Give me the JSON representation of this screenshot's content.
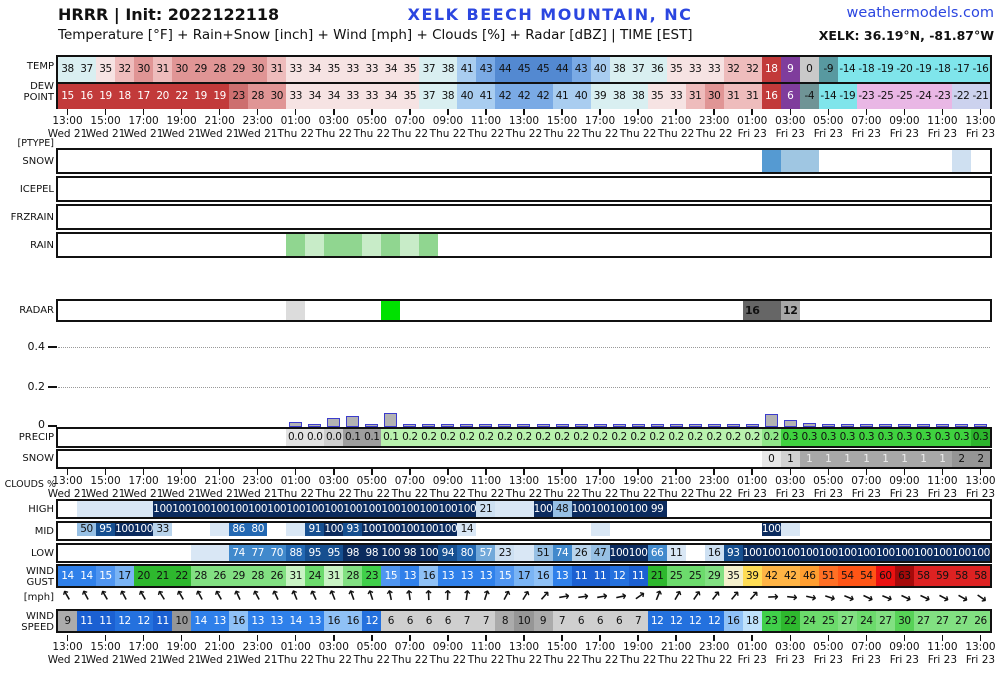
{
  "header": {
    "model_title": "HRRR | Init: 2022122118",
    "station_title": "XELK BEECH MOUNTAIN, NC",
    "site": "weathermodels.com",
    "subtitle": "Temperature [°F] + Rain+Snow [inch] + Wind [mph] + Clouds [%] + Radar [dBZ] | TIME [EST]",
    "coords": "XELK: 36.19°N, -81.87°W",
    "brand_blue": "#2b46e0"
  },
  "row_labels": {
    "temp": "TEMP",
    "dew": "DEW POINT",
    "ptype": "[PTYPE]",
    "ptype_snow": "SNOW",
    "ptype_icepel": "ICEPEL",
    "ptype_frzrain": "FRZRAIN",
    "ptype_rain": "RAIN",
    "radar": "RADAR",
    "precip": "PRECIP",
    "snow": "SNOW",
    "clouds": "CLOUDS %",
    "high": "HIGH",
    "mid": "MID",
    "low": "LOW",
    "gust": "WIND GUST",
    "mph": "[mph]",
    "speed": "WIND SPEED"
  },
  "chart_data": {
    "type": "meteogram",
    "time_axis": {
      "hours": [
        "13:00",
        "15:00",
        "17:00",
        "19:00",
        "21:00",
        "23:00",
        "01:00",
        "03:00",
        "05:00",
        "07:00",
        "09:00",
        "11:00",
        "13:00",
        "15:00",
        "17:00",
        "19:00",
        "21:00",
        "23:00",
        "01:00",
        "03:00",
        "05:00",
        "07:00",
        "09:00",
        "11:00",
        "13:00"
      ],
      "days": [
        "Wed 21",
        "Wed 21",
        "Wed 21",
        "Wed 21",
        "Wed 21",
        "Wed 21",
        "Thu 22",
        "Thu 22",
        "Thu 22",
        "Thu 22",
        "Thu 22",
        "Thu 22",
        "Thu 22",
        "Thu 22",
        "Thu 22",
        "Thu 22",
        "Thu 22",
        "Thu 22",
        "Fri 23",
        "Fri 23",
        "Fri 23",
        "Fri 23",
        "Fri 23",
        "Fri 23",
        "Fri 23"
      ]
    },
    "temp_f": [
      38,
      37,
      35,
      32,
      30,
      31,
      30,
      29,
      28,
      29,
      30,
      31,
      33,
      34,
      35,
      33,
      33,
      34,
      35,
      37,
      38,
      41,
      43,
      44,
      45,
      45,
      44,
      43,
      40,
      38,
      37,
      36,
      35,
      33,
      33,
      32,
      32,
      18,
      9,
      0,
      -9,
      -14,
      -18,
      -19,
      -20,
      -19,
      -18,
      -17,
      -16
    ],
    "dewpoint_f": [
      15,
      16,
      19,
      18,
      17,
      20,
      22,
      19,
      19,
      23,
      28,
      30,
      33,
      34,
      34,
      33,
      33,
      34,
      35,
      37,
      38,
      40,
      41,
      42,
      42,
      42,
      41,
      40,
      39,
      38,
      38,
      35,
      33,
      31,
      30,
      31,
      31,
      16,
      6,
      -4,
      -14,
      -19,
      -23,
      -25,
      -25,
      -24,
      -23,
      -22,
      -21
    ],
    "ptype_snow_cells": [
      {
        "col": 37,
        "bg": "#559ad2"
      },
      {
        "col": 38,
        "bg": "#9fc6e2"
      },
      {
        "col": 39,
        "bg": "#9fc6e2"
      },
      {
        "col": 47,
        "bg": "#cfe0f1"
      }
    ],
    "ptype_icepel_cells": [],
    "ptype_frzrain_cells": [],
    "ptype_rain_cells": [
      {
        "col": 12,
        "bg": "#90d690"
      },
      {
        "col": 13,
        "bg": "#c8ecc8"
      },
      {
        "col": 14,
        "bg": "#90d690"
      },
      {
        "col": 15,
        "bg": "#90d690"
      },
      {
        "col": 16,
        "bg": "#c8ecc8"
      },
      {
        "col": 17,
        "bg": "#90d690"
      },
      {
        "col": 18,
        "bg": "#c8ecc8"
      },
      {
        "col": 19,
        "bg": "#90d690"
      }
    ],
    "radar_cells": [
      {
        "col": 12,
        "bg": "#dcdcdc"
      },
      {
        "col": 17,
        "bg": "#00e100"
      },
      {
        "col": 36,
        "bg": "#666666",
        "label": "16"
      },
      {
        "col": 37,
        "bg": "#666666"
      },
      {
        "col": 38,
        "bg": "#a8a8a8",
        "label": "12"
      }
    ],
    "precip_axis": {
      "t04": "0.4",
      "t02": "0.2",
      "t0": "0",
      "unit": "inch"
    },
    "precip_bars_in": [
      0,
      0,
      0,
      0,
      0,
      0,
      0,
      0,
      0,
      0,
      0,
      0,
      0.025,
      0.008,
      0.045,
      0.055,
      0.008,
      0.07,
      0.008,
      0.015,
      0.006,
      0.006,
      0.006,
      0.006,
      0.006,
      0.006,
      0.006,
      0.006,
      0.006,
      0.006,
      0.006,
      0.006,
      0.006,
      0.006,
      0.006,
      0.006,
      0.006,
      0.068,
      0.034,
      0.02,
      0.01,
      0.01,
      0.01,
      0.01,
      0.01,
      0.01,
      0.01,
      0.01,
      0.01
    ],
    "precip_accum_in": [
      null,
      null,
      null,
      null,
      null,
      null,
      null,
      null,
      null,
      null,
      null,
      null,
      "0.0",
      "0.0",
      "0.0",
      "0.1",
      "0.1",
      "0.1",
      "0.2",
      "0.2",
      "0.2",
      "0.2",
      "0.2",
      "0.2",
      "0.2",
      "0.2",
      "0.2",
      "0.2",
      "0.2",
      "0.2",
      "0.2",
      "0.2",
      "0.2",
      "0.2",
      "0.2",
      "0.2",
      "0.2",
      "0.2",
      "0.3",
      "0.3",
      "0.3",
      "0.3",
      "0.3",
      "0.3",
      "0.3",
      "0.3",
      "0.3",
      "0.3",
      "0.3"
    ],
    "snow_accum_in": [
      null,
      null,
      null,
      null,
      null,
      null,
      null,
      null,
      null,
      null,
      null,
      null,
      null,
      null,
      null,
      null,
      null,
      null,
      null,
      null,
      null,
      null,
      null,
      null,
      null,
      null,
      null,
      null,
      null,
      null,
      null,
      null,
      null,
      null,
      null,
      null,
      null,
      "0",
      "1",
      "1",
      "1",
      "1",
      "1",
      "1",
      "1",
      "1",
      "1",
      "2",
      "2"
    ],
    "clouds_high_pct": [
      null,
      -1,
      -1,
      -1,
      -1,
      100,
      100,
      100,
      100,
      100,
      100,
      100,
      100,
      100,
      100,
      100,
      100,
      100,
      100,
      100,
      100,
      100,
      21,
      -1,
      -1,
      100,
      48,
      100,
      100,
      100,
      100,
      99,
      null,
      null,
      null,
      null,
      null,
      null,
      null,
      null,
      null,
      null,
      null,
      null,
      null,
      null,
      null,
      null,
      null
    ],
    "clouds_mid_pct": [
      null,
      50,
      95,
      100,
      100,
      33,
      null,
      null,
      -1,
      86,
      80,
      null,
      -1,
      91,
      100,
      93,
      100,
      100,
      100,
      100,
      100,
      14,
      null,
      null,
      null,
      null,
      null,
      null,
      -1,
      null,
      null,
      null,
      null,
      null,
      null,
      null,
      null,
      100,
      -1,
      null,
      null,
      null,
      null,
      null,
      null,
      null,
      null,
      null,
      null,
      null
    ],
    "clouds_low_pct": [
      null,
      null,
      null,
      null,
      null,
      null,
      null,
      -1,
      -1,
      74,
      77,
      70,
      88,
      95,
      95,
      98,
      98,
      100,
      98,
      100,
      94,
      80,
      57,
      23,
      -1,
      51,
      74,
      26,
      47,
      100,
      100,
      66,
      11,
      null,
      16,
      93,
      100,
      100,
      100,
      100,
      100,
      100,
      100,
      100,
      100,
      100,
      100,
      100,
      100
    ],
    "wind_gust_mph": [
      14,
      14,
      15,
      17,
      20,
      21,
      22,
      28,
      26,
      29,
      28,
      26,
      31,
      24,
      31,
      28,
      23,
      15,
      13,
      16,
      13,
      13,
      13,
      15,
      17,
      16,
      13,
      11,
      11,
      12,
      11,
      21,
      25,
      25,
      29,
      35,
      39,
      42,
      42,
      46,
      51,
      54,
      54,
      60,
      63,
      58,
      59,
      58,
      58
    ],
    "wind_dir_deg": [
      -30,
      -28,
      -30,
      -28,
      -30,
      -32,
      -30,
      -28,
      -30,
      -25,
      -28,
      -25,
      -22,
      -25,
      -22,
      -20,
      -18,
      -12,
      -8,
      -2,
      2,
      8,
      18,
      28,
      32,
      42,
      80,
      82,
      80,
      78,
      55,
      22,
      30,
      35,
      38,
      40,
      42,
      88,
      96,
      102,
      108,
      112,
      115,
      112,
      115,
      115,
      118,
      120,
      125
    ],
    "wind_speed_mph": [
      9,
      11,
      11,
      12,
      12,
      11,
      10,
      14,
      13,
      16,
      13,
      13,
      14,
      13,
      16,
      16,
      12,
      6,
      6,
      6,
      6,
      7,
      7,
      8,
      10,
      9,
      7,
      6,
      6,
      6,
      7,
      12,
      12,
      12,
      12,
      16,
      18,
      23,
      22,
      24,
      25,
      27,
      24,
      27,
      30,
      27,
      27,
      27,
      26
    ]
  },
  "colormaps": {
    "temp_bands": [
      [
        -99,
        -23,
        "#e9b7e5"
      ],
      [
        -22,
        -21,
        "#ccd2ee"
      ],
      [
        -20,
        -13,
        "#7fe5eb"
      ],
      [
        -12,
        -6,
        "#5899a0"
      ],
      [
        -5,
        -1,
        "#6f9496"
      ],
      [
        0,
        4,
        "#c9c9c9"
      ],
      [
        5,
        12,
        "#7f3d9c"
      ],
      [
        13,
        22,
        "#c23a3a"
      ],
      [
        23,
        27,
        "#cd6f6f"
      ],
      [
        28,
        30,
        "#e09595"
      ],
      [
        31,
        32,
        "#eebcbc"
      ],
      [
        33,
        35,
        "#f6e3e3"
      ],
      [
        36,
        39,
        "#d9eff1"
      ],
      [
        40,
        41,
        "#a9cdf0"
      ],
      [
        42,
        43,
        "#7aaae5"
      ],
      [
        44,
        99,
        "#5389d1"
      ]
    ],
    "wind_bands": [
      [
        0,
        7,
        "#cfcfcf"
      ],
      [
        8,
        9,
        "#ababab"
      ],
      [
        10,
        10,
        "#969696"
      ],
      [
        11,
        11,
        "#1b60d2"
      ],
      [
        12,
        12,
        "#2471de"
      ],
      [
        13,
        14,
        "#2f80ea"
      ],
      [
        15,
        15,
        "#4f95f0"
      ],
      [
        16,
        16,
        "#8fc1f6"
      ],
      [
        17,
        17,
        "#7ab4f4"
      ],
      [
        18,
        18,
        "#bfe2fb"
      ],
      [
        19,
        22,
        "#2eb82e"
      ],
      [
        23,
        23,
        "#40cf4a"
      ],
      [
        24,
        25,
        "#6cdb6c"
      ],
      [
        26,
        29,
        "#82e082"
      ],
      [
        30,
        30,
        "#57d257"
      ],
      [
        31,
        31,
        "#c9f3c4"
      ],
      [
        32,
        36,
        "#f4f0cc"
      ],
      [
        37,
        40,
        "#ffdd55"
      ],
      [
        41,
        43,
        "#ffb445"
      ],
      [
        44,
        47,
        "#ff9e30"
      ],
      [
        48,
        52,
        "#ff6f24"
      ],
      [
        53,
        56,
        "#ff5516"
      ],
      [
        57,
        59,
        "#dd2222"
      ],
      [
        60,
        61,
        "#ea1111"
      ],
      [
        62,
        99,
        "#a50a0a"
      ]
    ],
    "cloud_bands": [
      [
        0,
        15,
        "#d9e7f5"
      ],
      [
        16,
        25,
        "#cde0f2"
      ],
      [
        26,
        35,
        "#b9d4ec"
      ],
      [
        36,
        52,
        "#97c0e4"
      ],
      [
        53,
        60,
        "#72a9da"
      ],
      [
        61,
        79,
        "#4189cc"
      ],
      [
        80,
        89,
        "#2368b2"
      ],
      [
        90,
        95,
        "#164f90"
      ],
      [
        96,
        100,
        "#0b2b5e"
      ]
    ],
    "cloud_tint": "#d9e7f5",
    "precip_row_bands": [
      [
        12,
        13,
        "#e3e3e3"
      ],
      [
        14,
        14,
        "#cfcfcf"
      ],
      [
        15,
        16,
        "#9e9e9e"
      ],
      [
        17,
        36,
        "#b9f2ae"
      ],
      [
        37,
        37,
        "#90e78a"
      ],
      [
        38,
        47,
        "#3fd23f"
      ],
      [
        48,
        48,
        "#2cb52c"
      ]
    ],
    "snow_row_bands": [
      [
        37,
        37,
        "#e8e8e8"
      ],
      [
        38,
        38,
        "#d2d2d2"
      ],
      [
        39,
        46,
        "#a8a8a8"
      ],
      [
        47,
        48,
        "#959595"
      ]
    ]
  }
}
